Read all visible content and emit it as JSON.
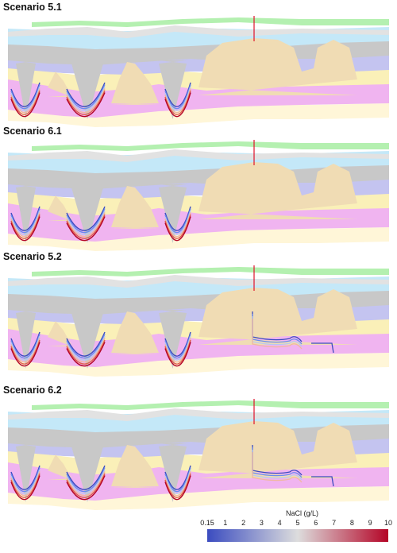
{
  "panels": [
    {
      "title": "Scenario 5.1",
      "variant": "6"
    },
    {
      "title": "Scenario 6.1",
      "variant": "6"
    },
    {
      "title": "Scenario 5.2",
      "variant": "5b"
    },
    {
      "title": "Scenario 6.2",
      "variant": "6b"
    }
  ],
  "legend": {
    "title": "NaCl (g/L)",
    "ticks": [
      "0.15",
      "1",
      "2",
      "3",
      "4",
      "5",
      "6",
      "7",
      "8",
      "9",
      "10"
    ],
    "colors": {
      "low": "#3b4cc0",
      "mid": "#dddddd",
      "high": "#b40426"
    }
  },
  "layer_colors": {
    "green": "#b4f0b0",
    "lightblue": "#c4e8f8",
    "gray": "#c8c8c8",
    "lavender": "#c4c4f0",
    "tan": "#f0dcb4",
    "yellow": "#faf0b8",
    "pink": "#f0b4f0",
    "cream": "#fff6d8",
    "lightgray": "#e2e2e2",
    "well": "#e0102a"
  }
}
